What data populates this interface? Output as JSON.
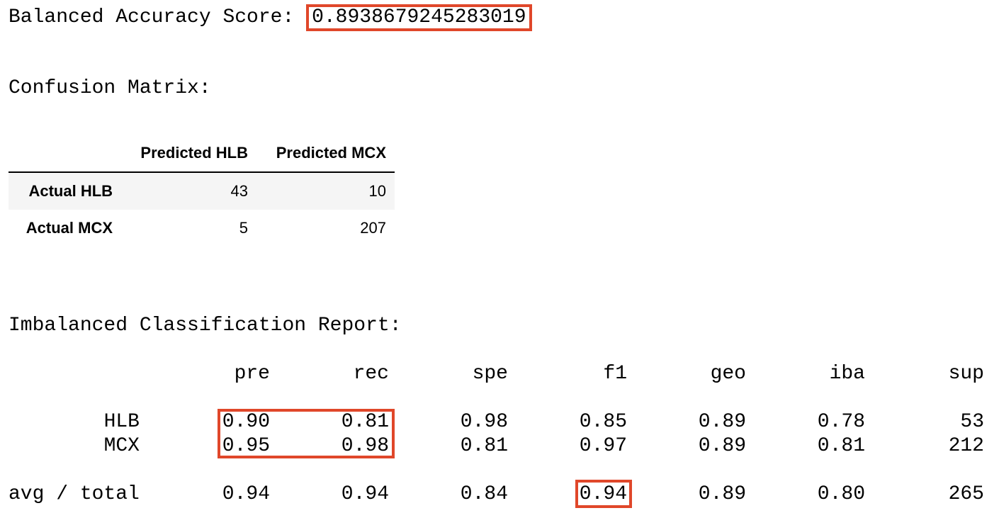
{
  "balanced_accuracy": {
    "label": "Balanced Accuracy Score:",
    "value": "0.8938679245283019"
  },
  "confusion_matrix": {
    "title": "Confusion Matrix:",
    "columns": [
      "Predicted HLB",
      "Predicted MCX"
    ],
    "rows": [
      {
        "label": "Actual HLB",
        "values": [
          "43",
          "10"
        ]
      },
      {
        "label": "Actual MCX",
        "values": [
          "5",
          "207"
        ]
      }
    ]
  },
  "report": {
    "title": "Imbalanced Classification Report:",
    "columns": [
      "pre",
      "rec",
      "spe",
      "f1",
      "geo",
      "iba",
      "sup"
    ],
    "rows": [
      {
        "label": "HLB",
        "values": [
          "0.90",
          "0.81",
          "0.98",
          "0.85",
          "0.89",
          "0.78",
          "53"
        ]
      },
      {
        "label": "MCX",
        "values": [
          "0.95",
          "0.98",
          "0.81",
          "0.97",
          "0.89",
          "0.81",
          "212"
        ]
      }
    ],
    "total": {
      "label": "avg / total",
      "values": [
        "0.94",
        "0.94",
        "0.84",
        "0.94",
        "0.89",
        "0.80",
        "265"
      ]
    }
  },
  "highlight_color": "#e0472a"
}
